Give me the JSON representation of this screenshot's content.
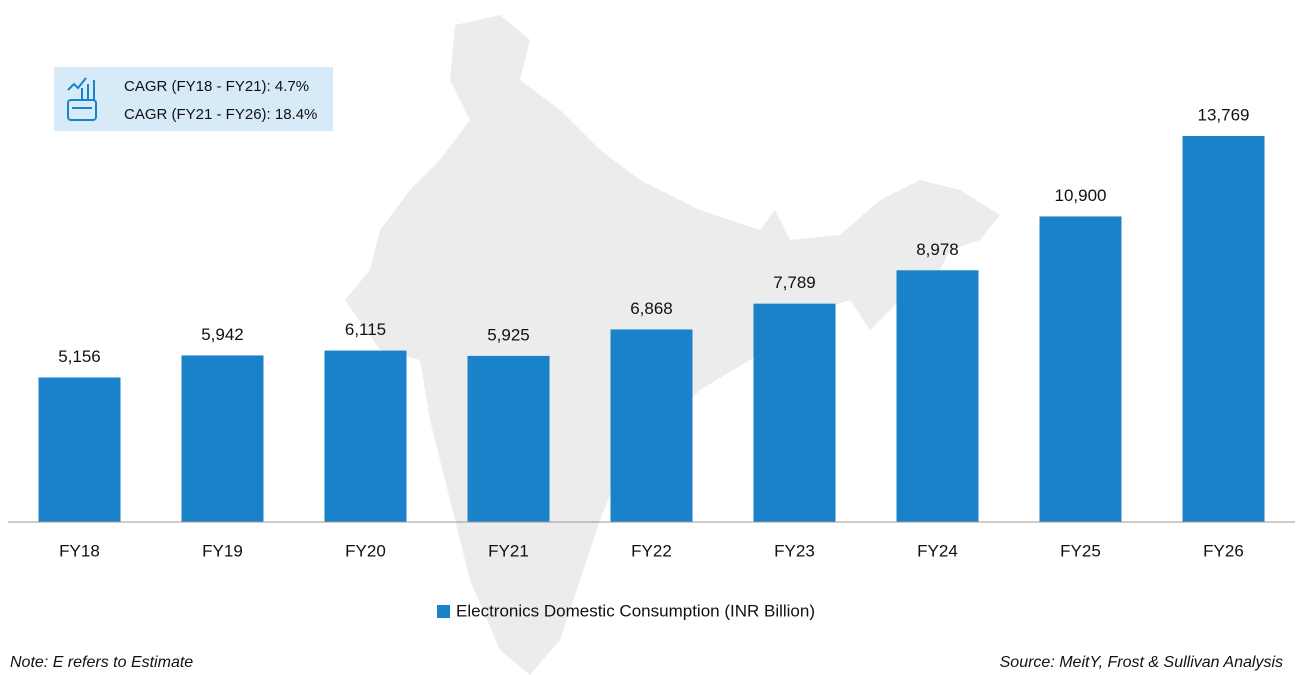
{
  "chart_data": {
    "type": "bar",
    "categories": [
      "FY18",
      "FY19",
      "FY20",
      "FY21",
      "FY22",
      "FY23",
      "FY24",
      "FY25",
      "FY26"
    ],
    "series": [
      {
        "name": "Electronics Domestic Consumption (INR Billion)",
        "color": "#1a82c8",
        "values": [
          5156,
          5942,
          6115,
          5925,
          6868,
          7789,
          8978,
          10900,
          13769
        ],
        "value_labels": [
          "5,156",
          "5,942",
          "6,115",
          "5,925",
          "6,868",
          "7,789",
          "8,978",
          "10,900",
          "13,769"
        ]
      }
    ],
    "annotations": [
      "CAGR (FY18 - FY21): 4.7%",
      "CAGR (FY21 - FY26): 18.4%"
    ],
    "note": "Note: E refers to Estimate",
    "source": "Source: MeitY, Frost & Sullivan Analysis"
  }
}
